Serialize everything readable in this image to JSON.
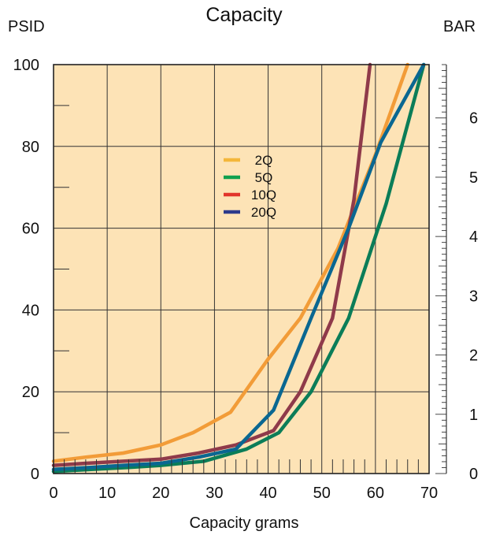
{
  "chart_data": {
    "type": "line",
    "title": "Capacity",
    "xlabel": "Capacity grams",
    "ylabel_left": "PSID",
    "ylabel_right": "BAR",
    "xlim": [
      0,
      70
    ],
    "ylim": [
      0,
      100
    ],
    "ylim_right": [
      0,
      6.9
    ],
    "x_ticks": [
      "0",
      "10",
      "20",
      "30",
      "40",
      "50",
      "60",
      "70"
    ],
    "y_ticks": [
      "0",
      "20",
      "40",
      "60",
      "80",
      "100"
    ],
    "y_ticks_right": [
      "0",
      "1",
      "2",
      "3",
      "4",
      "5",
      "6"
    ],
    "grid": true,
    "legend_position": "top-center",
    "plot_background": "#fde3b6",
    "legend": [
      {
        "label": "2Q",
        "color": "#f4b73a"
      },
      {
        "label": "5Q",
        "color": "#10a04e"
      },
      {
        "label": "10Q",
        "color": "#e2352b"
      },
      {
        "label": "20Q",
        "color": "#2c3a8c"
      }
    ],
    "series": [
      {
        "color": "#f29c38",
        "points": [
          [
            0,
            3
          ],
          [
            6,
            4
          ],
          [
            13,
            5
          ],
          [
            20,
            7
          ],
          [
            26,
            10
          ],
          [
            33,
            15
          ],
          [
            40,
            28
          ],
          [
            46,
            38
          ],
          [
            53,
            55
          ],
          [
            60,
            78
          ],
          [
            66,
            100
          ]
        ]
      },
      {
        "color": "#0b7d58",
        "points": [
          [
            0,
            0.5
          ],
          [
            7,
            1
          ],
          [
            14,
            1.5
          ],
          [
            20,
            2
          ],
          [
            28,
            3
          ],
          [
            36,
            6
          ],
          [
            42,
            10
          ],
          [
            48,
            20
          ],
          [
            55,
            38
          ],
          [
            62,
            66
          ],
          [
            69,
            100
          ]
        ]
      },
      {
        "color": "#8f3a4a",
        "points": [
          [
            0,
            2
          ],
          [
            6,
            2.5
          ],
          [
            13,
            3
          ],
          [
            20,
            3.5
          ],
          [
            27,
            5
          ],
          [
            34,
            7
          ],
          [
            41,
            10.5
          ],
          [
            46,
            20
          ],
          [
            52,
            38
          ],
          [
            56,
            67
          ],
          [
            59,
            100
          ]
        ]
      },
      {
        "color": "#0a6791",
        "points": [
          [
            0,
            1
          ],
          [
            7,
            1.5
          ],
          [
            13,
            2
          ],
          [
            20,
            2.5
          ],
          [
            27,
            4
          ],
          [
            34,
            6
          ],
          [
            41,
            15.5
          ],
          [
            48,
            38
          ],
          [
            55,
            60
          ],
          [
            61,
            81
          ],
          [
            69,
            100
          ]
        ]
      }
    ]
  }
}
